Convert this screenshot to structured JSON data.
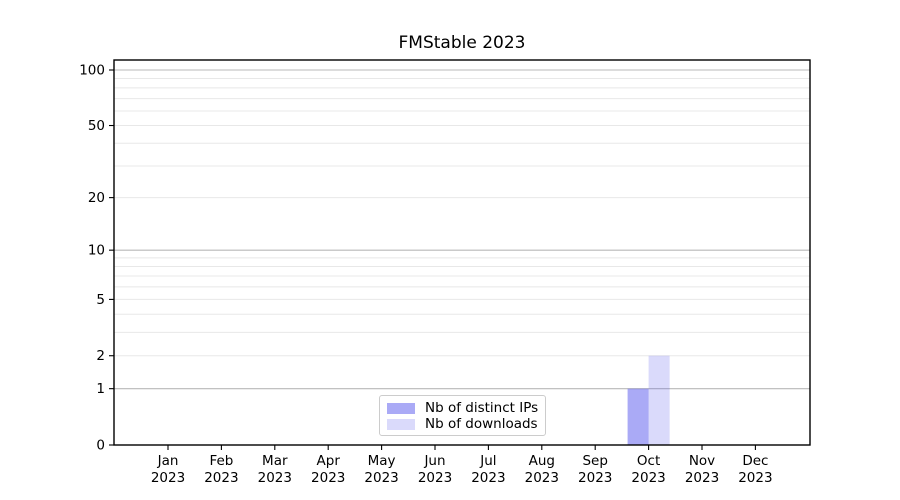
{
  "chart_data": {
    "type": "bar",
    "title": "FMStable 2023",
    "categories": [
      {
        "month": "Jan",
        "year": "2023"
      },
      {
        "month": "Feb",
        "year": "2023"
      },
      {
        "month": "Mar",
        "year": "2023"
      },
      {
        "month": "Apr",
        "year": "2023"
      },
      {
        "month": "May",
        "year": "2023"
      },
      {
        "month": "Jun",
        "year": "2023"
      },
      {
        "month": "Jul",
        "year": "2023"
      },
      {
        "month": "Aug",
        "year": "2023"
      },
      {
        "month": "Sep",
        "year": "2023"
      },
      {
        "month": "Oct",
        "year": "2023"
      },
      {
        "month": "Nov",
        "year": "2023"
      },
      {
        "month": "Dec",
        "year": "2023"
      }
    ],
    "series": [
      {
        "name": "Nb of distinct IPs",
        "color": "#5555ee",
        "opacity": 0.5,
        "values": [
          0,
          0,
          0,
          0,
          0,
          0,
          0,
          0,
          0,
          1,
          0,
          0
        ]
      },
      {
        "name": "Nb of downloads",
        "color": "#5555ee",
        "opacity": 0.22,
        "values": [
          0,
          0,
          0,
          0,
          0,
          0,
          0,
          0,
          0,
          2,
          0,
          0
        ]
      }
    ],
    "yscale": "log1p",
    "ylim": [
      0,
      113
    ],
    "yticks": [
      0,
      1,
      2,
      5,
      10,
      20,
      50,
      100
    ],
    "gridlines": {
      "major": [
        1,
        10,
        100
      ],
      "minor": [
        2,
        3,
        4,
        5,
        6,
        7,
        8,
        9,
        20,
        30,
        40,
        50,
        60,
        70,
        80,
        90
      ],
      "major_color": "#b8b8b8",
      "minor_color": "#e8e8e8"
    },
    "spine_color": "#000000",
    "tick_label_color": "#000000",
    "legend_position": "bottom-center",
    "grid": true
  }
}
